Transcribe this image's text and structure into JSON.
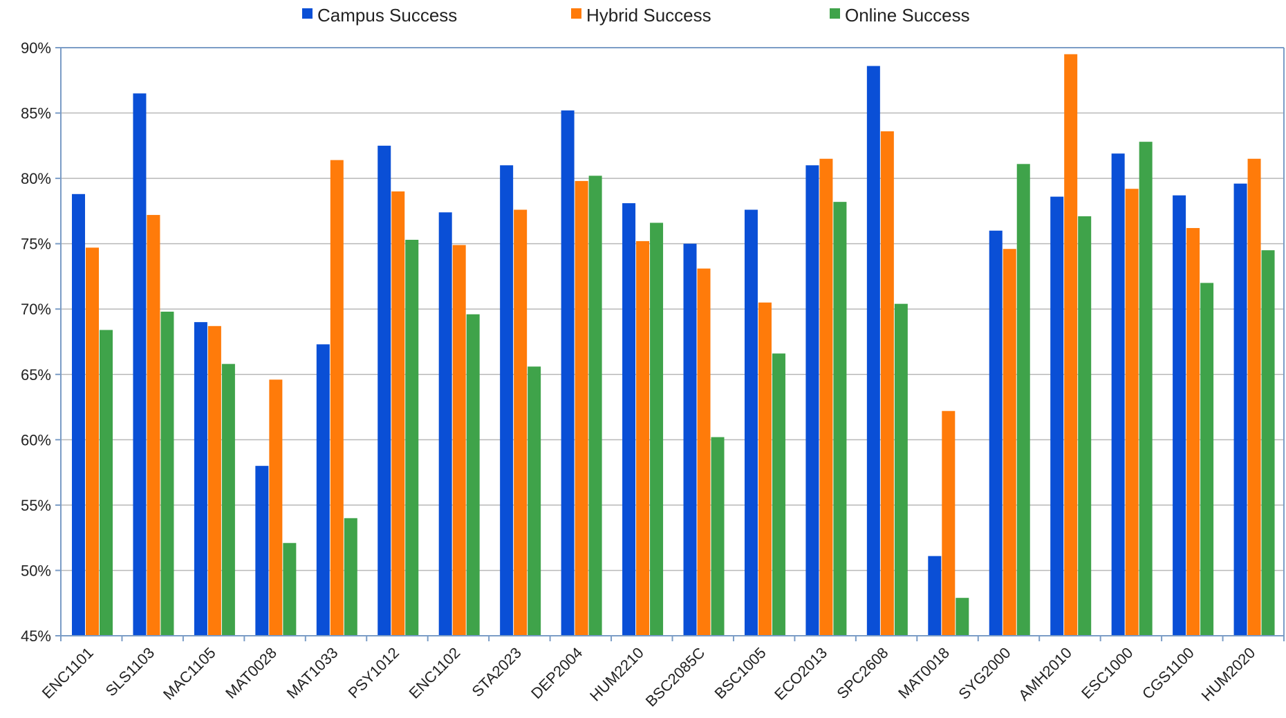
{
  "chart_data": {
    "type": "bar",
    "title": "",
    "xlabel": "",
    "ylabel": "",
    "ylim": [
      0.45,
      0.9
    ],
    "yticks": [
      0.45,
      0.5,
      0.55,
      0.6,
      0.65,
      0.7,
      0.75,
      0.8,
      0.85,
      0.9
    ],
    "ytick_labels": [
      "45%",
      "50%",
      "55%",
      "60%",
      "65%",
      "70%",
      "75%",
      "80%",
      "85%",
      "90%"
    ],
    "grid": true,
    "legend_position": "top-center",
    "categories": [
      "ENC1101",
      "SLS1103",
      "MAC1105",
      "MAT0028",
      "MAT1033",
      "PSY1012",
      "ENC1102",
      "STA2023",
      "DEP2004",
      "HUM2210",
      "BSC2085C",
      "BSC1005",
      "ECO2013",
      "SPC2608",
      "MAT0018",
      "SYG2000",
      "AMH2010",
      "ESC1000",
      "CGS1100",
      "HUM2020"
    ],
    "series": [
      {
        "name": "Campus Success",
        "color": "#0a4fd6",
        "values": [
          0.788,
          0.865,
          0.69,
          0.58,
          0.673,
          0.825,
          0.774,
          0.81,
          0.852,
          0.781,
          0.75,
          0.776,
          0.81,
          0.886,
          0.511,
          0.76,
          0.786,
          0.819,
          0.787,
          0.796
        ]
      },
      {
        "name": "Hybrid Success",
        "color": "#ff7b0a",
        "values": [
          0.747,
          0.772,
          0.687,
          0.646,
          0.814,
          0.79,
          0.749,
          0.776,
          0.798,
          0.752,
          0.731,
          0.705,
          0.815,
          0.836,
          0.622,
          0.746,
          0.895,
          0.792,
          0.762,
          0.815
        ]
      },
      {
        "name": "Online Success",
        "color": "#3fa34a",
        "values": [
          0.684,
          0.698,
          0.658,
          0.521,
          0.54,
          0.753,
          0.696,
          0.656,
          0.802,
          0.766,
          0.602,
          0.666,
          0.782,
          0.704,
          0.479,
          0.811,
          0.771,
          0.828,
          0.72,
          0.745
        ]
      }
    ]
  },
  "colors": {
    "axis": "#7a9cc6",
    "grid": "#b8b8b8",
    "plot_border": "#7a9cc6"
  }
}
